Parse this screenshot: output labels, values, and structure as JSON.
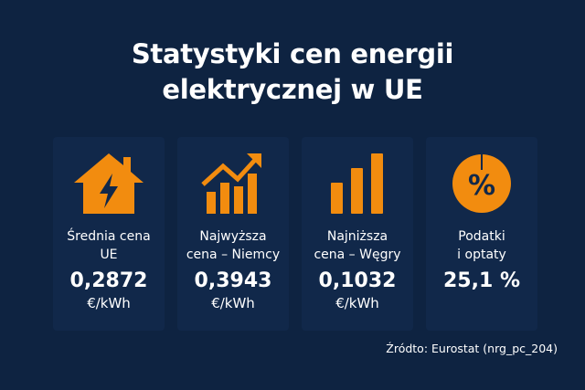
{
  "title": {
    "line1": "Statystyki cen energii",
    "line2": "elektrycznej w UE"
  },
  "colors": {
    "background": "#0e2341",
    "card": "#11284a",
    "accent": "#f28c0f",
    "text": "#ffffff"
  },
  "cards": [
    {
      "icon": "house-lightning-icon",
      "label_line1": "Średnia cena",
      "label_line2": "UE",
      "value": "0,2872",
      "unit": "€/kWh"
    },
    {
      "icon": "trend-up-chart-icon",
      "label_line1": "Najwyższa",
      "label_line2": "cena – Niemcy",
      "value": "0,3943",
      "unit": "€/kWh"
    },
    {
      "icon": "bar-chart-icon",
      "label_line1": "Najniższa",
      "label_line2": "cena – Węgry",
      "value": "0,1032",
      "unit": "€/kWh"
    },
    {
      "icon": "percent-pie-icon",
      "label_line1": "Podatki",
      "label_line2": "i optaty",
      "value": "25,1 %",
      "unit": ""
    }
  ],
  "source": "Źródto: Eurostat (nrg_pc_204)"
}
